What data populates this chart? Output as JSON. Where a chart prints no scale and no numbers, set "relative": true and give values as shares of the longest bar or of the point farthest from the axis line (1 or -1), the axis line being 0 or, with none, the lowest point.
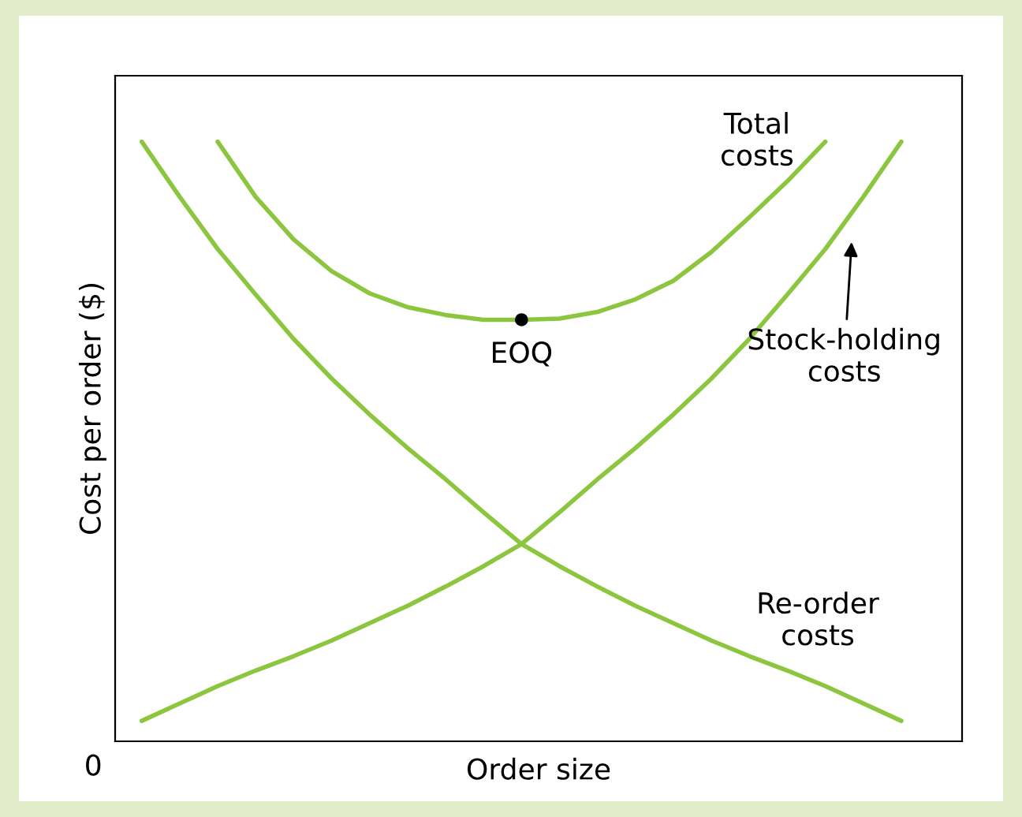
{
  "chart_data": {
    "type": "line",
    "relative": true,
    "xlabel": "Order size",
    "ylabel": "Cost per order ($)",
    "categories": [
      null,
      null,
      null,
      null,
      null,
      null,
      null,
      null,
      null,
      null,
      null,
      null,
      null,
      null,
      null,
      null,
      null,
      null,
      null,
      null,
      null
    ],
    "series": [
      {
        "name": "Total\ncosts",
        "color": "#8cc63f",
        "values": [
          null,
          null,
          1.0,
          0.908,
          0.837,
          0.784,
          0.747,
          0.724,
          0.711,
          0.703,
          0.703,
          0.705,
          0.716,
          0.737,
          0.768,
          0.816,
          0.874,
          0.934,
          1.0,
          null,
          null
        ]
      },
      {
        "name": "Stock-holding\ncosts",
        "color": "#8cc63f",
        "values": [
          0.034,
          0.063,
          0.092,
          0.118,
          0.142,
          0.168,
          0.197,
          0.226,
          0.258,
          0.292,
          0.329,
          0.382,
          0.437,
          0.489,
          0.545,
          0.605,
          0.671,
          0.745,
          0.821,
          0.908,
          1.0
        ]
      },
      {
        "name": "Re-order\ncosts",
        "color": "#8cc63f",
        "values": [
          1.0,
          0.908,
          0.821,
          0.745,
          0.671,
          0.605,
          0.545,
          0.489,
          0.437,
          0.382,
          0.329,
          0.292,
          0.258,
          0.226,
          0.197,
          0.168,
          0.142,
          0.118,
          0.092,
          0.063,
          0.034
        ]
      }
    ],
    "annotations": [
      "0",
      {
        "text": "EOQ",
        "y": 0.703
      }
    ]
  }
}
